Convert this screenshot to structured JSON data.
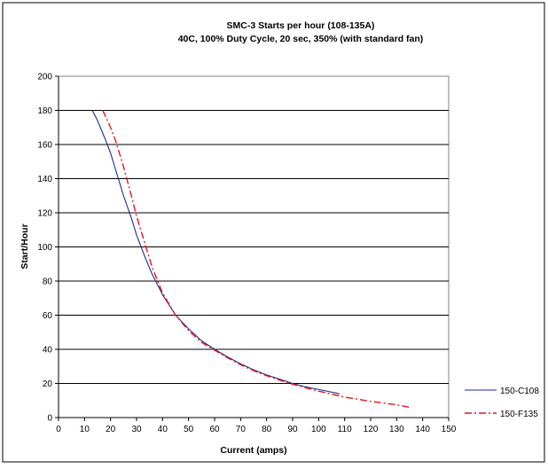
{
  "chart_data": {
    "type": "line",
    "title": "SMC-3 Starts per hour (108-135A)",
    "subtitle": "40C, 100% Duty Cycle, 20 sec, 350% (with standard fan)",
    "xlabel": "Current (amps)",
    "ylabel": "Start/Hour",
    "xlim": [
      0,
      150
    ],
    "ylim": [
      0,
      200
    ],
    "x_ticks": [
      "0",
      "10",
      "20",
      "30",
      "40",
      "50",
      "60",
      "70",
      "80",
      "90",
      "100",
      "110",
      "120",
      "130",
      "140",
      "150"
    ],
    "y_ticks": [
      "0",
      "20",
      "40",
      "60",
      "80",
      "100",
      "120",
      "140",
      "160",
      "180",
      "200"
    ],
    "grid": "horizontal",
    "legend_position": "right",
    "series": [
      {
        "name": "150-C108",
        "color": "#1f2a8c",
        "style": "solid",
        "x": [
          13,
          15,
          18,
          20,
          22,
          25,
          28,
          30,
          33,
          36,
          40,
          45,
          50,
          55,
          60,
          65,
          70,
          75,
          80,
          85,
          90,
          95,
          100,
          108
        ],
        "y": [
          180,
          174,
          163,
          155,
          145,
          130,
          117,
          107,
          95,
          84,
          72,
          60,
          52,
          45,
          40,
          35.5,
          31.5,
          28,
          25,
          22.5,
          20,
          18,
          16.5,
          14
        ]
      },
      {
        "name": "150-F135",
        "color": "#e8141b",
        "style": "dashdot",
        "x": [
          17,
          20,
          22,
          25,
          28,
          30,
          33,
          36,
          40,
          45,
          50,
          55,
          60,
          65,
          70,
          75,
          80,
          85,
          90,
          95,
          100,
          110,
          120,
          130,
          135
        ],
        "y": [
          180,
          170,
          162,
          147,
          130,
          118,
          103,
          88,
          73,
          60,
          51,
          44,
          39.5,
          35,
          31,
          27.5,
          24.5,
          22,
          19.5,
          17.5,
          15.5,
          12,
          9.5,
          7.5,
          6
        ]
      }
    ]
  }
}
